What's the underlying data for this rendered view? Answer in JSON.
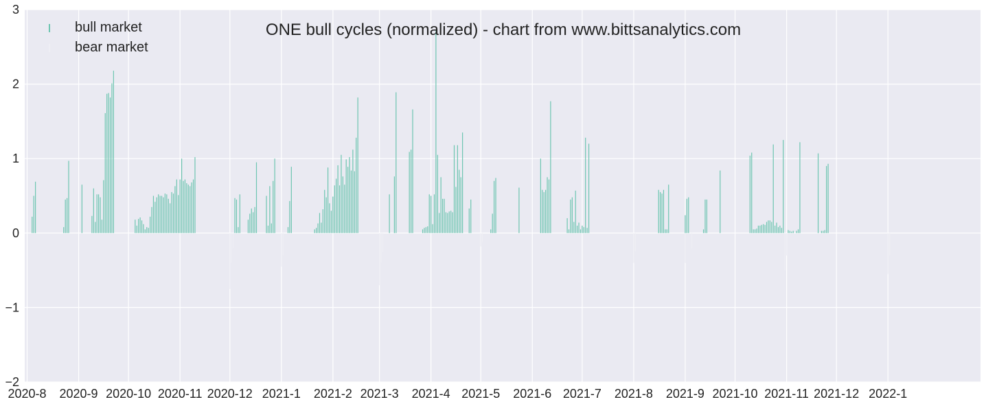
{
  "chart_data": {
    "type": "bar",
    "title": "ONE bull cycles (normalized)  - chart from www.bittsanalytics.com",
    "xlabel": "",
    "ylabel": "",
    "ylim": [
      -2,
      3
    ],
    "yticks": [
      3,
      2,
      1,
      0,
      -1,
      -2
    ],
    "ytick_labels": [
      "3",
      "2",
      "1",
      "0",
      "−1",
      "−2"
    ],
    "grid": true,
    "legend_position": "top-left",
    "x_start": "2020-07-26",
    "x_end": "2022-03-01",
    "xticks": [
      "2020-08-01",
      "2020-09-01",
      "2020-10-01",
      "2020-11-01",
      "2020-12-01",
      "2021-01-01",
      "2021-02-01",
      "2021-03-01",
      "2021-04-01",
      "2021-05-01",
      "2021-06-01",
      "2021-07-01",
      "2021-08-01",
      "2021-09-01",
      "2021-10-01",
      "2021-11-01",
      "2021-12-01",
      "2022-01-01"
    ],
    "xtick_labels": [
      "2020-8",
      "2020-9",
      "2020-10",
      "2020-11",
      "2020-12",
      "2021-1",
      "2021-2",
      "2021-3",
      "2021-4",
      "2021-5",
      "2021-6",
      "2021-7",
      "2021-8",
      "2021-9",
      "2021-10",
      "2021-11",
      "2021-12",
      "2022-1"
    ],
    "series": [
      {
        "name": "bull market",
        "color": "#6cc5b0",
        "points": [
          [
            "2020-08-04",
            0.22
          ],
          [
            "2020-08-05",
            0.5
          ],
          [
            "2020-08-06",
            0.69
          ],
          [
            "2020-08-23",
            0.08
          ],
          [
            "2020-08-24",
            0.45
          ],
          [
            "2020-08-25",
            0.47
          ],
          [
            "2020-08-26",
            0.97
          ],
          [
            "2020-09-03",
            0.65
          ],
          [
            "2020-09-09",
            0.23
          ],
          [
            "2020-09-10",
            0.6
          ],
          [
            "2020-09-11",
            0.15
          ],
          [
            "2020-09-12",
            0.52
          ],
          [
            "2020-09-13",
            0.52
          ],
          [
            "2020-09-14",
            0.48
          ],
          [
            "2020-09-15",
            0.18
          ],
          [
            "2020-09-16",
            0.71
          ],
          [
            "2020-09-17",
            1.61
          ],
          [
            "2020-09-18",
            1.87
          ],
          [
            "2020-09-19",
            1.88
          ],
          [
            "2020-09-20",
            1.82
          ],
          [
            "2020-09-21",
            2.01
          ],
          [
            "2020-09-22",
            2.18
          ],
          [
            "2020-10-05",
            0.18
          ],
          [
            "2020-10-06",
            0.1
          ],
          [
            "2020-10-07",
            0.19
          ],
          [
            "2020-10-08",
            0.21
          ],
          [
            "2020-10-09",
            0.17
          ],
          [
            "2020-10-10",
            0.12
          ],
          [
            "2020-10-11",
            0.05
          ],
          [
            "2020-10-12",
            0.08
          ],
          [
            "2020-10-13",
            0.07
          ],
          [
            "2020-10-14",
            0.22
          ],
          [
            "2020-10-15",
            0.35
          ],
          [
            "2020-10-16",
            0.5
          ],
          [
            "2020-10-17",
            0.42
          ],
          [
            "2020-10-18",
            0.48
          ],
          [
            "2020-10-19",
            0.52
          ],
          [
            "2020-10-20",
            0.5
          ],
          [
            "2020-10-21",
            0.5
          ],
          [
            "2020-10-22",
            0.48
          ],
          [
            "2020-10-23",
            0.53
          ],
          [
            "2020-10-24",
            0.52
          ],
          [
            "2020-10-25",
            0.46
          ],
          [
            "2020-10-26",
            0.4
          ],
          [
            "2020-10-27",
            0.55
          ],
          [
            "2020-10-28",
            0.53
          ],
          [
            "2020-10-29",
            0.63
          ],
          [
            "2020-10-30",
            0.72
          ],
          [
            "2020-10-31",
            0.51
          ],
          [
            "2020-11-01",
            0.72
          ],
          [
            "2020-11-02",
            1.0
          ],
          [
            "2020-11-03",
            0.7
          ],
          [
            "2020-11-04",
            0.72
          ],
          [
            "2020-11-05",
            0.67
          ],
          [
            "2020-11-06",
            0.65
          ],
          [
            "2020-11-07",
            0.63
          ],
          [
            "2020-11-08",
            0.68
          ],
          [
            "2020-11-09",
            0.72
          ],
          [
            "2020-11-10",
            1.02
          ],
          [
            "2020-12-04",
            0.47
          ],
          [
            "2020-12-05",
            0.45
          ],
          [
            "2020-12-06",
            0.08
          ],
          [
            "2020-12-07",
            0.52
          ],
          [
            "2020-12-12",
            0.18
          ],
          [
            "2020-12-13",
            0.26
          ],
          [
            "2020-12-14",
            0.33
          ],
          [
            "2020-12-15",
            0.28
          ],
          [
            "2020-12-16",
            0.35
          ],
          [
            "2020-12-17",
            0.95
          ],
          [
            "2020-12-23",
            0.5
          ],
          [
            "2020-12-24",
            0.1
          ],
          [
            "2020-12-25",
            0.63
          ],
          [
            "2020-12-26",
            0.13
          ],
          [
            "2020-12-27",
            0.7
          ],
          [
            "2020-12-28",
            1.0
          ],
          [
            "2021-01-05",
            0.08
          ],
          [
            "2021-01-06",
            0.43
          ],
          [
            "2021-01-07",
            0.89
          ],
          [
            "2021-01-21",
            0.05
          ],
          [
            "2021-01-22",
            0.07
          ],
          [
            "2021-01-23",
            0.13
          ],
          [
            "2021-01-24",
            0.27
          ],
          [
            "2021-01-25",
            0.14
          ],
          [
            "2021-01-26",
            0.32
          ],
          [
            "2021-01-27",
            0.58
          ],
          [
            "2021-01-28",
            0.48
          ],
          [
            "2021-01-29",
            0.88
          ],
          [
            "2021-01-30",
            0.4
          ],
          [
            "2021-01-31",
            0.3
          ],
          [
            "2021-02-01",
            0.49
          ],
          [
            "2021-02-02",
            0.64
          ],
          [
            "2021-02-03",
            0.73
          ],
          [
            "2021-02-04",
            0.91
          ],
          [
            "2021-02-05",
            0.64
          ],
          [
            "2021-02-06",
            1.05
          ],
          [
            "2021-02-07",
            0.76
          ],
          [
            "2021-02-08",
            0.65
          ],
          [
            "2021-02-09",
            0.99
          ],
          [
            "2021-02-10",
            0.89
          ],
          [
            "2021-02-11",
            1.02
          ],
          [
            "2021-02-12",
            0.84
          ],
          [
            "2021-02-13",
            1.12
          ],
          [
            "2021-02-14",
            0.83
          ],
          [
            "2021-02-15",
            1.28
          ],
          [
            "2021-02-16",
            1.82
          ],
          [
            "2021-03-07",
            0.52
          ],
          [
            "2021-03-10",
            0.76
          ],
          [
            "2021-03-11",
            1.89
          ],
          [
            "2021-03-19",
            1.09
          ],
          [
            "2021-03-20",
            1.12
          ],
          [
            "2021-03-21",
            1.66
          ],
          [
            "2021-03-27",
            0.05
          ],
          [
            "2021-03-28",
            0.07
          ],
          [
            "2021-03-29",
            0.08
          ],
          [
            "2021-03-30",
            0.09
          ],
          [
            "2021-03-31",
            0.52
          ],
          [
            "2021-04-01",
            0.5
          ],
          [
            "2021-04-02",
            0.12
          ],
          [
            "2021-04-03",
            0.52
          ],
          [
            "2021-04-04",
            2.72
          ],
          [
            "2021-04-05",
            1.05
          ],
          [
            "2021-04-06",
            0.27
          ],
          [
            "2021-04-07",
            0.75
          ],
          [
            "2021-04-08",
            0.46
          ],
          [
            "2021-04-09",
            0.46
          ],
          [
            "2021-04-10",
            0.28
          ],
          [
            "2021-04-11",
            0.27
          ],
          [
            "2021-04-12",
            0.29
          ],
          [
            "2021-04-13",
            0.3
          ],
          [
            "2021-04-14",
            0.28
          ],
          [
            "2021-04-15",
            1.18
          ],
          [
            "2021-04-16",
            0.62
          ],
          [
            "2021-04-17",
            1.18
          ],
          [
            "2021-04-18",
            0.85
          ],
          [
            "2021-04-19",
            0.75
          ],
          [
            "2021-04-20",
            1.35
          ],
          [
            "2021-04-24",
            0.33
          ],
          [
            "2021-04-25",
            0.45
          ],
          [
            "2021-05-07",
            0.05
          ],
          [
            "2021-05-08",
            0.26
          ],
          [
            "2021-05-09",
            0.7
          ],
          [
            "2021-05-10",
            0.74
          ],
          [
            "2021-05-24",
            0.61
          ],
          [
            "2021-06-06",
            1.0
          ],
          [
            "2021-06-07",
            0.58
          ],
          [
            "2021-06-08",
            0.55
          ],
          [
            "2021-06-09",
            0.58
          ],
          [
            "2021-06-10",
            0.75
          ],
          [
            "2021-06-11",
            0.72
          ],
          [
            "2021-06-12",
            1.77
          ],
          [
            "2021-06-22",
            0.2
          ],
          [
            "2021-06-23",
            0.05
          ],
          [
            "2021-06-24",
            0.45
          ],
          [
            "2021-06-25",
            0.48
          ],
          [
            "2021-06-26",
            0.15
          ],
          [
            "2021-06-27",
            0.57
          ],
          [
            "2021-06-28",
            0.1
          ],
          [
            "2021-06-29",
            0.14
          ],
          [
            "2021-06-30",
            0.05
          ],
          [
            "2021-07-01",
            0.1
          ],
          [
            "2021-07-02",
            0.08
          ],
          [
            "2021-07-03",
            1.28
          ],
          [
            "2021-07-04",
            0.07
          ],
          [
            "2021-07-05",
            1.2
          ],
          [
            "2021-08-16",
            0.58
          ],
          [
            "2021-08-17",
            0.55
          ],
          [
            "2021-08-18",
            0.53
          ],
          [
            "2021-08-19",
            0.58
          ],
          [
            "2021-08-20",
            0.05
          ],
          [
            "2021-08-21",
            0.05
          ],
          [
            "2021-08-22",
            0.65
          ],
          [
            "2021-09-01",
            0.24
          ],
          [
            "2021-09-02",
            0.46
          ],
          [
            "2021-09-03",
            0.48
          ],
          [
            "2021-09-12",
            0.05
          ],
          [
            "2021-09-13",
            0.45
          ],
          [
            "2021-09-14",
            0.45
          ],
          [
            "2021-09-22",
            0.84
          ],
          [
            "2021-10-10",
            1.04
          ],
          [
            "2021-10-11",
            1.08
          ],
          [
            "2021-10-12",
            0.05
          ],
          [
            "2021-10-13",
            0.05
          ],
          [
            "2021-10-14",
            0.06
          ],
          [
            "2021-10-15",
            0.1
          ],
          [
            "2021-10-16",
            0.1
          ],
          [
            "2021-10-17",
            0.11
          ],
          [
            "2021-10-18",
            0.12
          ],
          [
            "2021-10-19",
            0.11
          ],
          [
            "2021-10-20",
            0.15
          ],
          [
            "2021-10-21",
            0.17
          ],
          [
            "2021-10-22",
            0.17
          ],
          [
            "2021-10-23",
            0.15
          ],
          [
            "2021-10-24",
            1.19
          ],
          [
            "2021-10-25",
            0.1
          ],
          [
            "2021-10-26",
            0.14
          ],
          [
            "2021-10-27",
            0.08
          ],
          [
            "2021-10-28",
            0.1
          ],
          [
            "2021-10-29",
            0.07
          ],
          [
            "2021-10-30",
            1.25
          ],
          [
            "2021-11-02",
            0.04
          ],
          [
            "2021-11-03",
            0.03
          ],
          [
            "2021-11-04",
            0.02
          ],
          [
            "2021-11-05",
            0.03
          ],
          [
            "2021-11-07",
            0.03
          ],
          [
            "2021-11-08",
            0.05
          ],
          [
            "2021-11-09",
            1.22
          ],
          [
            "2021-11-20",
            1.07
          ],
          [
            "2021-11-22",
            0.03
          ],
          [
            "2021-11-23",
            0.03
          ],
          [
            "2021-11-24",
            0.04
          ],
          [
            "2021-11-25",
            0.9
          ],
          [
            "2021-11-26",
            0.93
          ]
        ]
      },
      {
        "name": "bear market",
        "color": "#eeeef4",
        "points": [
          [
            "2020-12-01",
            -0.75
          ],
          [
            "2020-12-02",
            -0.4
          ],
          [
            "2020-12-03",
            -0.2
          ],
          [
            "2021-01-01",
            -0.45
          ],
          [
            "2021-01-02",
            -0.3
          ],
          [
            "2021-03-01",
            -0.7
          ],
          [
            "2021-03-02",
            -0.4
          ],
          [
            "2021-03-03",
            -0.25
          ],
          [
            "2021-05-01",
            -0.18
          ],
          [
            "2021-05-02",
            -0.12
          ],
          [
            "2021-08-01",
            -0.4
          ],
          [
            "2021-08-02",
            -0.25
          ],
          [
            "2021-09-01",
            -0.4
          ],
          [
            "2021-09-05",
            -0.2
          ],
          [
            "2021-10-31",
            -0.5
          ],
          [
            "2021-11-01",
            -0.3
          ],
          [
            "2022-01-01",
            -0.55
          ],
          [
            "2022-01-02",
            -0.3
          ]
        ]
      }
    ]
  }
}
